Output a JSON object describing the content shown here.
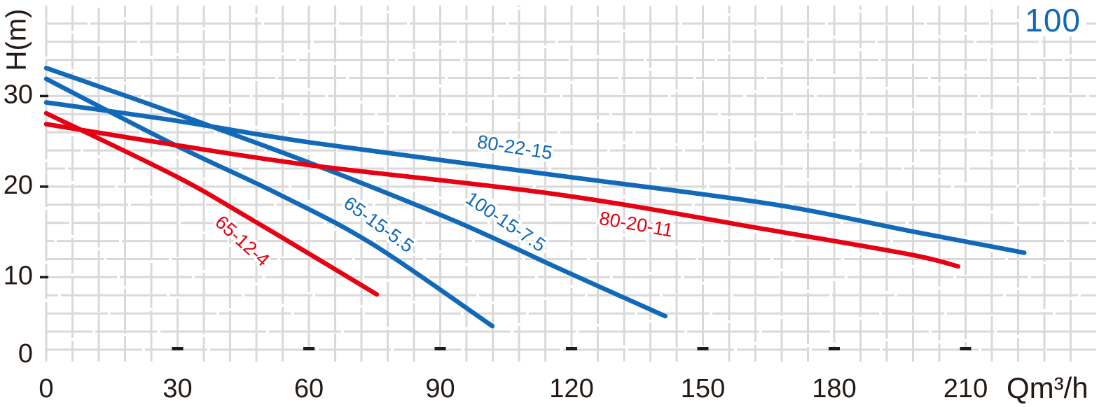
{
  "page": {
    "corner_label": "100",
    "background": "#ffffff",
    "grid_color": "#d9d9d9",
    "text_color": "#241a15",
    "accent_blue": "#1169b8",
    "accent_red": "#e60013"
  },
  "chart_data": {
    "type": "line",
    "title": "",
    "xlabel": "Qm³/h",
    "ylabel": "H(m)",
    "x_ticks": [
      0,
      30,
      60,
      90,
      120,
      150,
      180,
      210
    ],
    "y_ticks": [
      0,
      10,
      20,
      30
    ],
    "xlim": [
      0,
      234
    ],
    "ylim": [
      2,
      40
    ],
    "grid": {
      "on": true,
      "minor_x_step": 6,
      "minor_y_step": 2
    },
    "legend_position": "none",
    "series": [
      {
        "name": "80-22-15",
        "color": "#1169b8",
        "points": [
          [
            0,
            29.3
          ],
          [
            29.4,
            27.3
          ],
          [
            61.4,
            24.8
          ],
          [
            117.4,
            21.2
          ],
          [
            165.4,
            18.1
          ],
          [
            197.4,
            15.1
          ],
          [
            223.4,
            12.7
          ]
        ],
        "label_at": [
          107,
          24.2
        ],
        "label_angle": 9
      },
      {
        "name": "100-15-7.5",
        "color": "#1169b8",
        "points": [
          [
            0,
            33.1
          ],
          [
            29.4,
            28.1
          ],
          [
            61.4,
            22.4
          ],
          [
            93.4,
            16.2
          ],
          [
            117.4,
            10.9
          ],
          [
            141.4,
            5.7
          ]
        ],
        "label_at": [
          104.8,
          16.0
        ],
        "label_angle": 34
      },
      {
        "name": "65-15-5.5",
        "color": "#1169b8",
        "points": [
          [
            0,
            31.9
          ],
          [
            29.4,
            24.6
          ],
          [
            53.4,
            19.1
          ],
          [
            74.7,
            13.6
          ],
          [
            101.9,
            4.6
          ]
        ],
        "label_at": [
          75.8,
          15.7
        ],
        "label_angle": 36
      },
      {
        "name": "80-20-11",
        "color": "#e60013",
        "points": [
          [
            0,
            26.9
          ],
          [
            29.4,
            24.6
          ],
          [
            61.4,
            22.3
          ],
          [
            117.4,
            19.1
          ],
          [
            165.4,
            15.2
          ],
          [
            197.4,
            12.5
          ],
          [
            208.3,
            11.2
          ]
        ],
        "label_at": [
          134.7,
          15.7
        ],
        "label_angle": 10
      },
      {
        "name": "65-12-4",
        "color": "#e60013",
        "points": [
          [
            0,
            28.1
          ],
          [
            29.4,
            21.2
          ],
          [
            45.4,
            16.8
          ],
          [
            61.4,
            12.2
          ],
          [
            75.5,
            8.1
          ]
        ],
        "label_at": [
          44.6,
          13.9
        ],
        "label_angle": 42
      }
    ]
  }
}
